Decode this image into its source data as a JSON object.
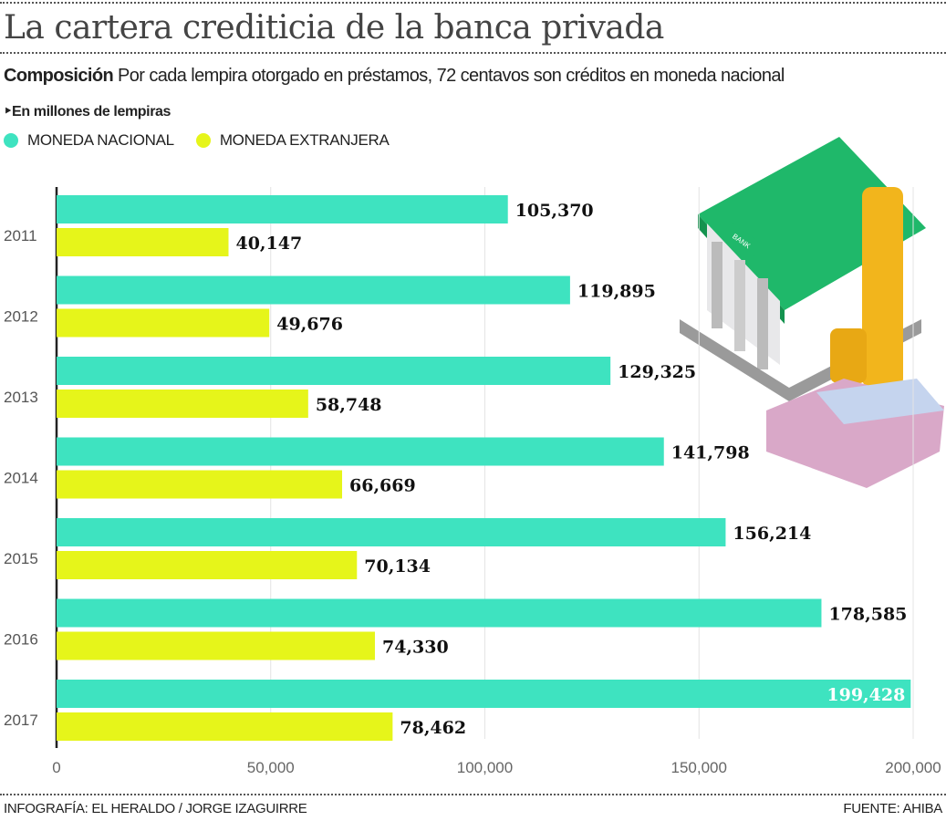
{
  "title": "La cartera crediticia de la banca privada",
  "subtitle_bold": "Composición",
  "subtitle": "Por cada lempira otorgado en préstamos, 72 centavos son créditos en moneda nacional",
  "unit_note": "En millones de lempiras",
  "footer": {
    "credit": "INFOGRAFÍA: EL HERALDO / JORGE IZAGUIRRE",
    "source": "FUENTE: AHIBA"
  },
  "illustration": {
    "bank_sign": "BANK"
  },
  "chart_data": {
    "type": "bar",
    "orientation": "horizontal",
    "categories": [
      "2011",
      "2012",
      "2013",
      "2014",
      "2015",
      "2016",
      "2017"
    ],
    "series": [
      {
        "name": "MONEDA NACIONAL",
        "color": "#3ee3c0",
        "values": [
          105370,
          119895,
          129325,
          141798,
          156214,
          178585,
          199428
        ],
        "labels": [
          "105,370",
          "119,895",
          "129,325",
          "141,798",
          "156,214",
          "178,585",
          "199,428"
        ]
      },
      {
        "name": "MONEDA EXTRANJERA",
        "color": "#e6f51a",
        "values": [
          40147,
          49676,
          58748,
          66669,
          70134,
          74330,
          78462
        ],
        "labels": [
          "40,147",
          "49,676",
          "58,748",
          "66,669",
          "70,134",
          "74,330",
          "78,462"
        ]
      }
    ],
    "xlim": [
      0,
      200000
    ],
    "xticks": [
      0,
      50000,
      100000,
      150000,
      200000
    ],
    "xtick_labels": [
      "0",
      "50,000",
      "100,000",
      "150,000",
      "200,000"
    ],
    "grid": true,
    "legend": "top-left"
  }
}
